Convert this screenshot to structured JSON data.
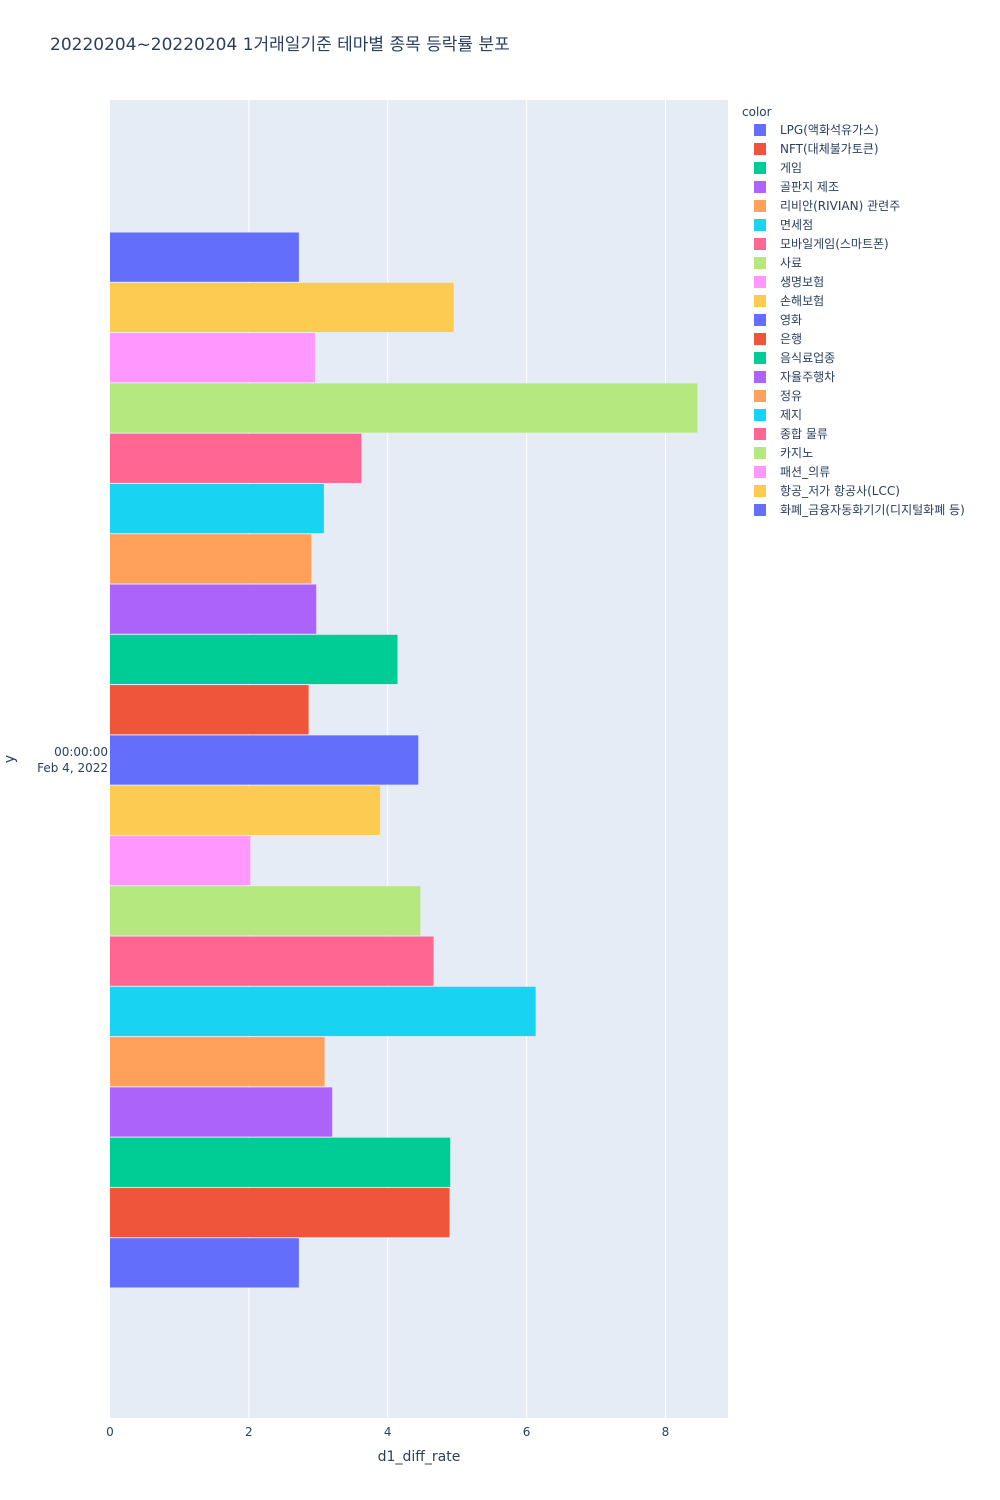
{
  "chart_data": {
    "type": "bar",
    "orientation": "horizontal",
    "barmode": "group",
    "title": "20220204~20220204 1거래일기준 테마별 종목 등락률 분포",
    "xlabel": "d1_diff_rate",
    "ylabel": "y",
    "xlim": [
      0,
      8.9
    ],
    "x_ticks": [
      0,
      2,
      4,
      6,
      8
    ],
    "y_tick_lines": [
      "00:00:00",
      "Feb 4, 2022"
    ],
    "grid": true,
    "legend_title": "color",
    "legend_position": "top-right",
    "series": [
      {
        "name": "LPG(액화석유가스)",
        "value": 2.72,
        "color": "#636efa"
      },
      {
        "name": "NFT(대체불가토큰)",
        "value": 4.89,
        "color": "#EF553B"
      },
      {
        "name": "게임",
        "value": 4.9,
        "color": "#00cc96"
      },
      {
        "name": "골판지 제조",
        "value": 3.2,
        "color": "#ab63fa"
      },
      {
        "name": "리비안(RIVIAN) 관련주",
        "value": 3.09,
        "color": "#FFA15A"
      },
      {
        "name": "면세점",
        "value": 6.13,
        "color": "#19d3f3"
      },
      {
        "name": "모바일게임(스마트폰)",
        "value": 4.66,
        "color": "#FF6692"
      },
      {
        "name": "사료",
        "value": 4.47,
        "color": "#B6E880"
      },
      {
        "name": "생명보험",
        "value": 2.02,
        "color": "#FF97FF"
      },
      {
        "name": "손해보험",
        "value": 3.89,
        "color": "#FECB52"
      },
      {
        "name": "영화",
        "value": 4.44,
        "color": "#636efa"
      },
      {
        "name": "은행",
        "value": 2.86,
        "color": "#EF553B"
      },
      {
        "name": "음식료업종",
        "value": 4.14,
        "color": "#00cc96"
      },
      {
        "name": "자율주행차",
        "value": 2.97,
        "color": "#ab63fa"
      },
      {
        "name": "정유",
        "value": 2.9,
        "color": "#FFA15A"
      },
      {
        "name": "제지",
        "value": 3.08,
        "color": "#19d3f3"
      },
      {
        "name": "종합 물류",
        "value": 3.62,
        "color": "#FF6692"
      },
      {
        "name": "카지노",
        "value": 8.46,
        "color": "#B6E880"
      },
      {
        "name": "패션_의류",
        "value": 2.95,
        "color": "#FF97FF"
      },
      {
        "name": "항공_저가 항공사(LCC)",
        "value": 4.95,
        "color": "#FECB52"
      },
      {
        "name": "화폐_금융자동화기기(디지털화폐 등)",
        "value": 2.72,
        "color": "#636efa"
      }
    ],
    "colors": {
      "plot_background": "#e5ecf6",
      "gridline": "#ffffff",
      "text": "#2a3f5f"
    }
  }
}
